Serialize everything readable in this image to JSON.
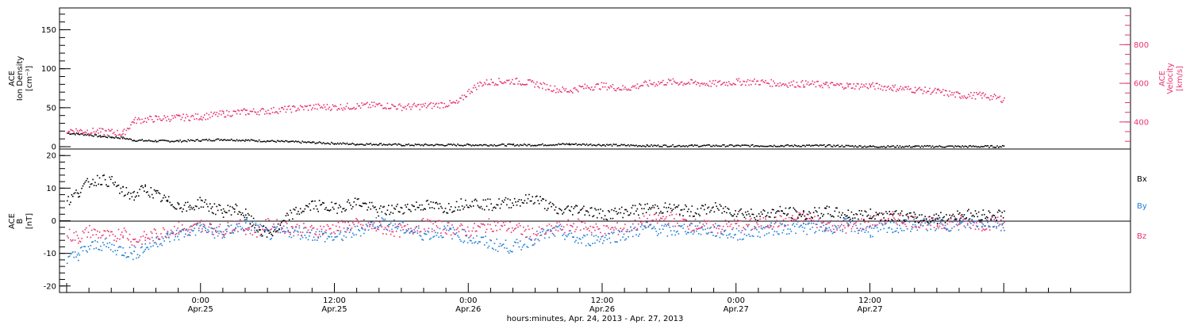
{
  "chart_data": [
    {
      "type": "scatter",
      "panel": "top",
      "ylabel_left": [
        "ACE",
        "Ion Density",
        "[cm⁻³]"
      ],
      "ylabel_right": [
        "ACE",
        "Velocity",
        "[km/s]"
      ],
      "yticks_left": [
        "0",
        "50",
        "100",
        "150"
      ],
      "yticks_right": [
        "400",
        "600",
        "800"
      ],
      "ylim_left": [
        -3,
        178
      ],
      "ylim_right": [
        260,
        990
      ],
      "x_range_hours": [
        0,
        84
      ],
      "series": [
        {
          "axis": "left",
          "color": "#000000",
          "points": [
            [
              0,
              18
            ],
            [
              1,
              17
            ],
            [
              2,
              16
            ],
            [
              3,
              14
            ],
            [
              4,
              13
            ],
            [
              5,
              12
            ],
            [
              6,
              9
            ],
            [
              8,
              8
            ],
            [
              10,
              8
            ],
            [
              12,
              9
            ],
            [
              14,
              10
            ],
            [
              16,
              9
            ],
            [
              18,
              8
            ],
            [
              20,
              7
            ],
            [
              22,
              6
            ],
            [
              24,
              5
            ],
            [
              26,
              4
            ],
            [
              28,
              4
            ],
            [
              30,
              3
            ],
            [
              32,
              3
            ],
            [
              36,
              3
            ],
            [
              40,
              3
            ],
            [
              42,
              3
            ],
            [
              45,
              4
            ],
            [
              48,
              3
            ],
            [
              52,
              2
            ],
            [
              56,
              2
            ],
            [
              60,
              2
            ],
            [
              64,
              2
            ],
            [
              68,
              2
            ],
            [
              72,
              1
            ],
            [
              76,
              1
            ],
            [
              80,
              1
            ],
            [
              84,
              1
            ]
          ]
        },
        {
          "axis": "right",
          "color": "#e8336d",
          "points": [
            [
              0,
              360
            ],
            [
              2,
              355
            ],
            [
              4,
              350
            ],
            [
              5,
              342
            ],
            [
              6,
              410
            ],
            [
              8,
              420
            ],
            [
              10,
              425
            ],
            [
              12,
              430
            ],
            [
              14,
              445
            ],
            [
              16,
              455
            ],
            [
              18,
              460
            ],
            [
              20,
              470
            ],
            [
              22,
              480
            ],
            [
              24,
              480
            ],
            [
              26,
              485
            ],
            [
              28,
              490
            ],
            [
              30,
              480
            ],
            [
              32,
              485
            ],
            [
              34,
              495
            ],
            [
              35,
              500
            ],
            [
              36,
              560
            ],
            [
              37,
              600
            ],
            [
              38,
              610
            ],
            [
              40,
              615
            ],
            [
              42,
              600
            ],
            [
              44,
              570
            ],
            [
              45,
              565
            ],
            [
              46,
              580
            ],
            [
              48,
              590
            ],
            [
              50,
              575
            ],
            [
              52,
              600
            ],
            [
              54,
              610
            ],
            [
              56,
              605
            ],
            [
              58,
              600
            ],
            [
              60,
              610
            ],
            [
              62,
              610
            ],
            [
              64,
              600
            ],
            [
              66,
              600
            ],
            [
              68,
              595
            ],
            [
              70,
              590
            ],
            [
              72,
              590
            ],
            [
              74,
              580
            ],
            [
              76,
              570
            ],
            [
              78,
              560
            ],
            [
              80,
              540
            ],
            [
              82,
              540
            ],
            [
              84,
              520
            ]
          ]
        }
      ]
    },
    {
      "type": "scatter",
      "panel": "bottom",
      "ylabel_left": [
        "ACE",
        "B",
        "[nT]"
      ],
      "yticks_left": [
        "-20",
        "-10",
        "0",
        "10",
        "20"
      ],
      "ylim_left": [
        -22,
        22
      ],
      "x_range_hours": [
        0,
        84
      ],
      "series": [
        {
          "name": "Bx",
          "color": "#000000",
          "points": [
            [
              0,
              6
            ],
            [
              1,
              9
            ],
            [
              2,
              12
            ],
            [
              3,
              13
            ],
            [
              4,
              12
            ],
            [
              5,
              9
            ],
            [
              6,
              8
            ],
            [
              7,
              10
            ],
            [
              8,
              8
            ],
            [
              9,
              6
            ],
            [
              10,
              5
            ],
            [
              11,
              4
            ],
            [
              12,
              6
            ],
            [
              13,
              4
            ],
            [
              14,
              3
            ],
            [
              15,
              4
            ],
            [
              16,
              2
            ],
            [
              17,
              -2
            ],
            [
              18,
              -4
            ],
            [
              19,
              -2
            ],
            [
              20,
              2
            ],
            [
              22,
              5
            ],
            [
              24,
              4
            ],
            [
              26,
              6
            ],
            [
              28,
              3
            ],
            [
              30,
              4
            ],
            [
              32,
              5
            ],
            [
              34,
              4
            ],
            [
              36,
              6
            ],
            [
              38,
              5
            ],
            [
              40,
              6
            ],
            [
              42,
              7
            ],
            [
              44,
              3
            ],
            [
              46,
              4
            ],
            [
              48,
              2
            ],
            [
              50,
              3
            ],
            [
              52,
              4
            ],
            [
              54,
              4
            ],
            [
              56,
              3
            ],
            [
              58,
              4
            ],
            [
              60,
              3
            ],
            [
              62,
              2
            ],
            [
              64,
              3
            ],
            [
              66,
              2
            ],
            [
              68,
              3
            ],
            [
              70,
              2
            ],
            [
              72,
              2
            ],
            [
              74,
              2
            ],
            [
              76,
              1
            ],
            [
              78,
              1
            ],
            [
              80,
              2
            ],
            [
              82,
              2
            ],
            [
              84,
              2
            ]
          ]
        },
        {
          "name": "By",
          "color": "#1e7fd8",
          "points": [
            [
              0,
              -12
            ],
            [
              1,
              -10
            ],
            [
              2,
              -8
            ],
            [
              3,
              -7
            ],
            [
              4,
              -8
            ],
            [
              5,
              -9
            ],
            [
              6,
              -10
            ],
            [
              7,
              -8
            ],
            [
              8,
              -6
            ],
            [
              9,
              -5
            ],
            [
              10,
              -4
            ],
            [
              11,
              -3
            ],
            [
              12,
              -2
            ],
            [
              13,
              -3
            ],
            [
              14,
              -4
            ],
            [
              15,
              -2
            ],
            [
              16,
              -1
            ],
            [
              17,
              -2
            ],
            [
              18,
              -4
            ],
            [
              20,
              -3
            ],
            [
              22,
              -4
            ],
            [
              24,
              -5
            ],
            [
              26,
              -3
            ],
            [
              28,
              0
            ],
            [
              30,
              -2
            ],
            [
              32,
              -4
            ],
            [
              34,
              -3
            ],
            [
              36,
              -5
            ],
            [
              38,
              -7
            ],
            [
              40,
              -8
            ],
            [
              42,
              -5
            ],
            [
              44,
              -3
            ],
            [
              46,
              -6
            ],
            [
              48,
              -5
            ],
            [
              50,
              -4
            ],
            [
              52,
              -2
            ],
            [
              54,
              -3
            ],
            [
              56,
              -2
            ],
            [
              58,
              -3
            ],
            [
              60,
              -4
            ],
            [
              62,
              -3
            ],
            [
              64,
              -2
            ],
            [
              66,
              -2
            ],
            [
              68,
              -2
            ],
            [
              70,
              -1
            ],
            [
              72,
              -3
            ],
            [
              74,
              -2
            ],
            [
              76,
              -1
            ],
            [
              78,
              -1
            ],
            [
              80,
              -1
            ],
            [
              82,
              0
            ],
            [
              84,
              -1
            ]
          ]
        },
        {
          "name": "Bz",
          "color": "#e8336d",
          "points": [
            [
              0,
              -4
            ],
            [
              1,
              -5
            ],
            [
              2,
              -3
            ],
            [
              3,
              -4
            ],
            [
              4,
              -5
            ],
            [
              5,
              -3
            ],
            [
              6,
              -6
            ],
            [
              7,
              -5
            ],
            [
              8,
              -4
            ],
            [
              9,
              -3
            ],
            [
              10,
              -2
            ],
            [
              11,
              -3
            ],
            [
              12,
              -1
            ],
            [
              13,
              -2
            ],
            [
              14,
              -3
            ],
            [
              15,
              -1
            ],
            [
              16,
              -2
            ],
            [
              17,
              -3
            ],
            [
              18,
              -1
            ],
            [
              20,
              -2
            ],
            [
              22,
              -3
            ],
            [
              24,
              -2
            ],
            [
              26,
              -1
            ],
            [
              28,
              -2
            ],
            [
              30,
              -3
            ],
            [
              32,
              -1
            ],
            [
              34,
              -2
            ],
            [
              36,
              -3
            ],
            [
              38,
              -1
            ],
            [
              40,
              -2
            ],
            [
              42,
              -4
            ],
            [
              44,
              -2
            ],
            [
              46,
              -1
            ],
            [
              48,
              -3
            ],
            [
              50,
              -2
            ],
            [
              52,
              0
            ],
            [
              54,
              1
            ],
            [
              56,
              -1
            ],
            [
              58,
              -2
            ],
            [
              60,
              -1
            ],
            [
              62,
              -1
            ],
            [
              64,
              0
            ],
            [
              66,
              1
            ],
            [
              68,
              -1
            ],
            [
              70,
              -2
            ],
            [
              72,
              0
            ],
            [
              74,
              1
            ],
            [
              76,
              0
            ],
            [
              78,
              -1
            ],
            [
              80,
              0
            ],
            [
              82,
              -1
            ],
            [
              84,
              0
            ]
          ]
        }
      ],
      "legend": [
        "Bx",
        "By",
        "Bz"
      ],
      "legend_position": "right"
    }
  ],
  "x_axis": {
    "ticks": [
      {
        "hour": 12,
        "time": "0:00",
        "date": "Apr.25"
      },
      {
        "hour": 24,
        "time": "12:00",
        "date": "Apr.25"
      },
      {
        "hour": 36,
        "time": "0:00",
        "date": "Apr.26"
      },
      {
        "hour": 48,
        "time": "12:00",
        "date": "Apr.26"
      },
      {
        "hour": 60,
        "time": "0:00",
        "date": "Apr.27"
      },
      {
        "hour": 72,
        "time": "12:00",
        "date": "Apr.27"
      }
    ],
    "xlabel": "hours:minutes, Apr. 24, 2013 - Apr. 27, 2013"
  },
  "colors": {
    "pink": "#e8336d",
    "blue": "#1e7fd8",
    "black": "#000000"
  }
}
